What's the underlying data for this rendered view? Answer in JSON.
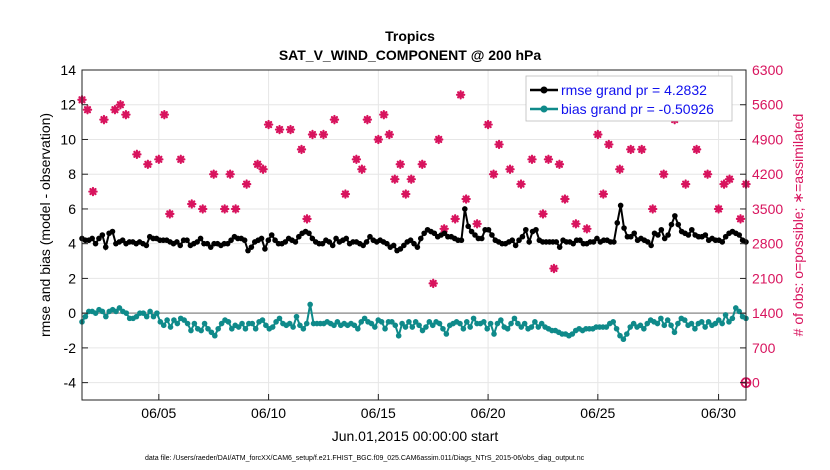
{
  "chart_data": {
    "type": "line",
    "title": "Tropics",
    "subtitle": "SAT_V_WIND_COMPONENT @ 200 hPa",
    "xlabel": "Jun.01,2015 00:00:00 start",
    "ylabel": "rmse and bias (model - observation)",
    "y2label": "# of obs: o=possible; ∗=assimilated",
    "footnote": "data file: /Users/raeder/DAI/ATM_forcXX/CAM6_setup/f.e21.FHIST_BGC.f09_025.CAM6assim.011/Diags_NTrS_2015-06/obs_diag_output.nc",
    "x_range_days": [
      0.5,
      30.75
    ],
    "x_ticks": [
      4,
      9,
      14,
      19,
      24,
      29.5
    ],
    "x_tick_labels": [
      "06/05",
      "06/10",
      "06/15",
      "06/20",
      "06/25",
      "06/30"
    ],
    "ylim": [
      -5,
      14
    ],
    "y_ticks": [
      -4,
      -2,
      0,
      2,
      4,
      6,
      8,
      10,
      12,
      14
    ],
    "y2lim": [
      -350,
      6300
    ],
    "y2_ticks": [
      0,
      700,
      1400,
      2100,
      2800,
      3500,
      4200,
      4900,
      5600,
      6300
    ],
    "grid": true,
    "legend_position": "top-right",
    "colors": {
      "rmse": "#000000",
      "bias": "#0f8a8a",
      "nobs": "#d8145e",
      "zero_line": "#9a9a9a",
      "grid": "#e6e6e6",
      "legend_text": "#1010ee"
    },
    "series": [
      {
        "name": "rmse grand pr = 4.2832",
        "key": "rmse",
        "values": [
          4.3,
          4.2,
          4.2,
          4.3,
          4.0,
          4.3,
          4.5,
          3.8,
          4.6,
          4.7,
          4.0,
          4.1,
          4.2,
          4.0,
          4.1,
          4.1,
          4.0,
          4.1,
          4.0,
          3.9,
          4.4,
          4.3,
          4.3,
          4.2,
          4.2,
          4.2,
          4.1,
          4.0,
          4.1,
          3.9,
          4.2,
          4.2,
          3.9,
          4.0,
          4.1,
          4.3,
          4.0,
          4.0,
          3.8,
          4.0,
          4.0,
          3.9,
          4.0,
          4.0,
          4.2,
          4.4,
          4.3,
          4.3,
          4.2,
          3.6,
          3.8,
          4.1,
          4.2,
          4.3,
          3.7,
          4.2,
          4.5,
          4.2,
          4.0,
          4.0,
          4.1,
          4.3,
          4.2,
          4.1,
          4.4,
          4.6,
          4.7,
          4.6,
          4.3,
          4.1,
          4.0,
          4.0,
          4.2,
          4.1,
          3.9,
          4.3,
          4.1,
          4.2,
          4.3,
          4.0,
          4.1,
          4.1,
          4.0,
          3.9,
          4.1,
          4.4,
          4.2,
          4.1,
          4.2,
          4.1,
          4.0,
          3.8,
          3.9,
          3.6,
          3.7,
          3.9,
          4.1,
          4.2,
          4.0,
          3.8,
          4.3,
          4.6,
          4.8,
          4.7,
          4.6,
          4.4,
          4.5,
          4.6,
          4.4,
          4.4,
          4.3,
          4.2,
          4.2,
          6.0,
          5.0,
          4.7,
          4.5,
          4.3,
          4.3,
          4.8,
          4.8,
          4.5,
          4.2,
          4.1,
          4.0,
          4.0,
          4.1,
          4.2,
          3.9,
          4.2,
          4.4,
          4.8,
          4.1,
          4.7,
          4.8,
          4.2,
          4.1,
          4.1,
          4.1,
          4.1,
          4.1,
          3.8,
          4.2,
          4.1,
          4.1,
          4.0,
          4.2,
          4.2,
          4.0,
          4.0,
          4.1,
          4.1,
          4.3,
          4.1,
          4.2,
          4.2,
          4.1,
          4.1,
          5.2,
          6.2,
          4.9,
          4.4,
          4.4,
          4.6,
          4.2,
          4.3,
          4.2,
          4.1,
          3.9,
          4.6,
          4.5,
          4.8,
          4.3,
          4.5,
          5.1,
          5.6,
          5.1,
          4.7,
          4.6,
          4.5,
          4.8,
          4.5,
          4.4,
          4.4,
          4.5,
          4.2,
          4.3,
          4.2,
          4.2,
          4.1,
          4.4,
          4.6,
          4.7,
          4.6,
          4.5,
          4.2,
          4.1
        ]
      },
      {
        "name": "bias grand pr = -0.50926",
        "key": "bias",
        "values": [
          -0.5,
          -0.2,
          0.1,
          0.1,
          0.0,
          0.2,
          0.1,
          -0.2,
          0.1,
          0.2,
          0.1,
          0.3,
          0.1,
          0.0,
          -0.3,
          -0.3,
          -0.2,
          0.0,
          0.0,
          -0.2,
          0.1,
          -0.2,
          0.0,
          -0.5,
          -0.7,
          -0.4,
          -0.8,
          -0.4,
          -0.6,
          -0.3,
          -0.4,
          -0.6,
          -1.0,
          -0.6,
          -0.9,
          -1.0,
          -0.6,
          -0.9,
          -1.1,
          -1.3,
          -0.9,
          -0.6,
          -0.4,
          -0.5,
          -0.9,
          -0.7,
          -0.8,
          -0.6,
          -0.9,
          -0.6,
          -0.6,
          -0.9,
          -0.5,
          -0.4,
          -0.7,
          -0.9,
          -0.8,
          -0.5,
          -0.3,
          -0.6,
          -0.7,
          -0.6,
          -0.8,
          -0.2,
          -0.7,
          -0.9,
          -0.6,
          0.5,
          -0.6,
          -0.6,
          -0.6,
          -0.6,
          -0.5,
          -0.6,
          -0.7,
          -0.5,
          -0.7,
          -0.6,
          -0.7,
          -0.6,
          -0.7,
          -0.9,
          -0.5,
          -0.3,
          -0.5,
          -0.6,
          -0.8,
          -0.4,
          -0.5,
          -0.9,
          -0.5,
          -0.5,
          -0.7,
          -1.3,
          -0.6,
          -0.8,
          -0.5,
          -0.8,
          -0.5,
          -0.7,
          -1.0,
          -0.8,
          -0.5,
          -0.7,
          -0.5,
          -0.6,
          -0.9,
          -1.2,
          -0.7,
          -0.6,
          -0.5,
          -0.6,
          -0.9,
          -0.5,
          -0.8,
          -0.3,
          -0.6,
          -0.6,
          -0.5,
          -0.9,
          -0.6,
          -1.2,
          -0.6,
          -0.4,
          -0.8,
          -0.9,
          -0.6,
          -0.3,
          -0.6,
          -0.8,
          -0.6,
          -0.9,
          -0.8,
          -0.5,
          -0.8,
          -0.6,
          -0.8,
          -0.9,
          -1.0,
          -1.0,
          -1.1,
          -1.2,
          -1.2,
          -1.3,
          -1.2,
          -1.0,
          -0.9,
          -1.0,
          -0.9,
          -0.9,
          -0.9,
          -0.8,
          -0.8,
          -0.8,
          -0.8,
          -0.6,
          -0.5,
          -0.9,
          -1.3,
          -1.5,
          -1.2,
          -0.8,
          -0.6,
          -0.8,
          -0.7,
          -0.9,
          -0.6,
          -0.4,
          -0.5,
          -0.6,
          -0.3,
          -0.7,
          -0.4,
          -0.7,
          -1.1,
          -0.6,
          -0.3,
          -0.4,
          -0.7,
          -0.6,
          -0.9,
          -0.6,
          -0.5,
          -0.8,
          -0.5,
          -0.7,
          -0.6,
          -0.4,
          -0.6,
          -0.1,
          -0.5,
          -0.3,
          0.3,
          0.1,
          -0.2,
          -0.3
        ]
      },
      {
        "name": "assimilated",
        "key": "nobs",
        "x": [
          0.5,
          0.75,
          1,
          1.5,
          2,
          2.25,
          2.5,
          3,
          3.5,
          4,
          4.25,
          4.5,
          5,
          5.5,
          6,
          6.5,
          7,
          7.25,
          7.5,
          8,
          8.5,
          8.75,
          9,
          9.5,
          10,
          10.5,
          10.75,
          11,
          11.5,
          12,
          12.5,
          13,
          13.25,
          13.5,
          14,
          14.25,
          14.5,
          14.75,
          15,
          15.25,
          15.5,
          16,
          16.5,
          16.75,
          17,
          17.5,
          17.75,
          18,
          18.5,
          19,
          19.25,
          19.5,
          20,
          20.5,
          21,
          21.5,
          21.75,
          22,
          22.25,
          22.5,
          23,
          23.5,
          24,
          24.25,
          24.5,
          25,
          25.5,
          26,
          26.5,
          27,
          27.5,
          28,
          28.5,
          29,
          29.5,
          29.75,
          30,
          30.5,
          30.75
        ],
        "values": [
          5700,
          5500,
          3850,
          5300,
          5500,
          5600,
          5400,
          4600,
          4400,
          4500,
          5400,
          3400,
          4500,
          3600,
          3500,
          4200,
          3500,
          4200,
          3500,
          4000,
          4400,
          4300,
          5200,
          5100,
          5100,
          4700,
          3300,
          5000,
          5000,
          5300,
          3800,
          4500,
          4300,
          5300,
          4900,
          5400,
          5000,
          4100,
          4400,
          3800,
          4100,
          4400,
          2000,
          4900,
          3100,
          3300,
          5800,
          3700,
          3200,
          5200,
          4200,
          4800,
          4300,
          4000,
          4500,
          3400,
          4500,
          2300,
          4400,
          3700,
          3200,
          3100,
          5000,
          3800,
          4800,
          4300,
          4700,
          4700,
          3500,
          4200,
          5300,
          4000,
          4700,
          4200,
          3500,
          4000,
          4100,
          3300,
          4000
        ]
      }
    ]
  }
}
